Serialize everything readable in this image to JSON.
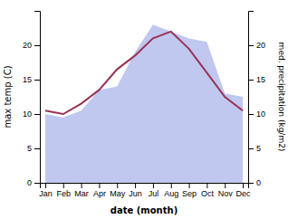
{
  "chart_data": {
    "type": "line",
    "categories": [
      "Jan",
      "Feb",
      "Mar",
      "Apr",
      "May",
      "Jun",
      "Jul",
      "Aug",
      "Sep",
      "Oct",
      "Nov",
      "Dec"
    ],
    "xlabel": "date (month)",
    "ylabel": "max temp (C)",
    "y2label": "med. precipitation (kg/m2)",
    "ylim": [
      0,
      25
    ],
    "yticks": [
      0,
      5,
      10,
      15,
      20
    ],
    "y2lim": [
      0,
      25
    ],
    "y2ticks": [
      0,
      5,
      10,
      15,
      20
    ],
    "series": [
      {
        "type": "area",
        "axis": "y2",
        "color": "#c0c8f0",
        "values": [
          10.0,
          9.5,
          10.5,
          13.5,
          14.0,
          19.0,
          23.0,
          22.0,
          21.0,
          20.5,
          13.0,
          12.5
        ]
      },
      {
        "type": "line",
        "color": "#993355",
        "values": [
          10.5,
          10.0,
          11.5,
          13.5,
          16.5,
          18.5,
          21.0,
          22.0,
          19.5,
          16.0,
          12.5,
          10.5
        ]
      }
    ]
  }
}
